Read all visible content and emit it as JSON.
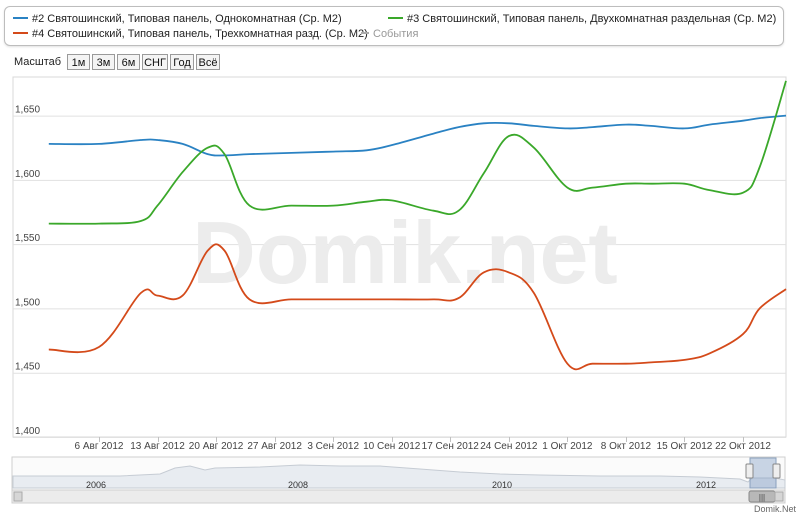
{
  "legend": {
    "items": [
      {
        "label": "#2 Святошинский, Типовая панель, Однокомнатная (Ср. М2)",
        "color": "#2a82c3"
      },
      {
        "label": "#3 Святошинский, Типовая панель, Двухкомнатная раздельная (Ср. М2)",
        "color": "#3aa82a"
      },
      {
        "label": "#4 Святошинский, Типовая панель, Трехкомнатная разд. (Ср. М2)",
        "color": "#d44a1a"
      },
      {
        "label": "События",
        "color": "#aaaaaa"
      }
    ]
  },
  "zoom": {
    "label": "Масштаб",
    "buttons": [
      "1м",
      "3м",
      "6м",
      "СНГ",
      "Год",
      "Всё"
    ]
  },
  "watermark": "Domik.net",
  "footer": "Domik.Net",
  "navigator": {
    "years": [
      "2006",
      "2008",
      "2010",
      "2012"
    ],
    "handle_glyph": "|||"
  },
  "chart_data": {
    "type": "line",
    "ylim": [
      1400,
      1680
    ],
    "yticks": [
      "1,400",
      "1,450",
      "1,500",
      "1,550",
      "1,600",
      "1,650"
    ],
    "xtick_labels": [
      "6 Авг 2012",
      "13 Авг 2012",
      "20 Авг 2012",
      "27 Авг 2012",
      "3 Сен 2012",
      "10 Сен 2012",
      "17 Сен 2012",
      "24 Сен 2012",
      "1 Окт 2012",
      "8 Окт 2012",
      "15 Окт 2012",
      "22 Окт 2012"
    ],
    "x": [
      "31 Июл 2012",
      "6 Авг 2012",
      "11 Авг 2012",
      "13 Авг 2012",
      "16 Авг 2012",
      "19 Авг 2012",
      "21 Авг 2012",
      "24 Авг 2012",
      "29 Авг 2012",
      "3 Сен 2012",
      "7 Сен 2012",
      "10 Сен 2012",
      "15 Сен 2012",
      "18 Сен 2012",
      "21 Сен 2012",
      "24 Сен 2012",
      "27 Сен 2012",
      "1 Окт 2012",
      "4 Окт 2012",
      "8 Окт 2012",
      "11 Окт 2012",
      "15 Окт 2012",
      "18 Окт 2012",
      "22 Окт 2012",
      "24 Окт 2012",
      "28 Окт 2012"
    ],
    "series": [
      {
        "name": "#2 Святошинский, Типовая панель, Однокомнатная (Ср. М2)",
        "color": "#2a82c3",
        "values": [
          1628,
          1628,
          1631,
          1631,
          1628,
          1620,
          1619,
          1620,
          1621,
          1622,
          1623,
          1627,
          1636,
          1641,
          1644,
          1644,
          1642,
          1640,
          1641,
          1643,
          1642,
          1640,
          1643,
          1646,
          1648,
          1650
        ]
      },
      {
        "name": "#3 Святошинский, Типовая панель, Двухкомнатная раздельная (Ср. М2)",
        "color": "#3aa82a",
        "values": [
          1566,
          1566,
          1568,
          1580,
          1606,
          1625,
          1620,
          1580,
          1580,
          1580,
          1583,
          1584,
          1576,
          1576,
          1605,
          1634,
          1625,
          1594,
          1594,
          1597,
          1597,
          1597,
          1592,
          1590,
          1610,
          1677
        ]
      },
      {
        "name": "#4 Святошинский, Типовая панель, Трехкомнатная разд. (Ср. М2)",
        "color": "#d44a1a",
        "values": [
          1468,
          1470,
          1512,
          1510,
          1510,
          1545,
          1545,
          1507,
          1507,
          1507,
          1507,
          1507,
          1507,
          1508,
          1528,
          1528,
          1512,
          1457,
          1457,
          1457,
          1458,
          1460,
          1465,
          1480,
          1500,
          1515
        ]
      }
    ]
  }
}
